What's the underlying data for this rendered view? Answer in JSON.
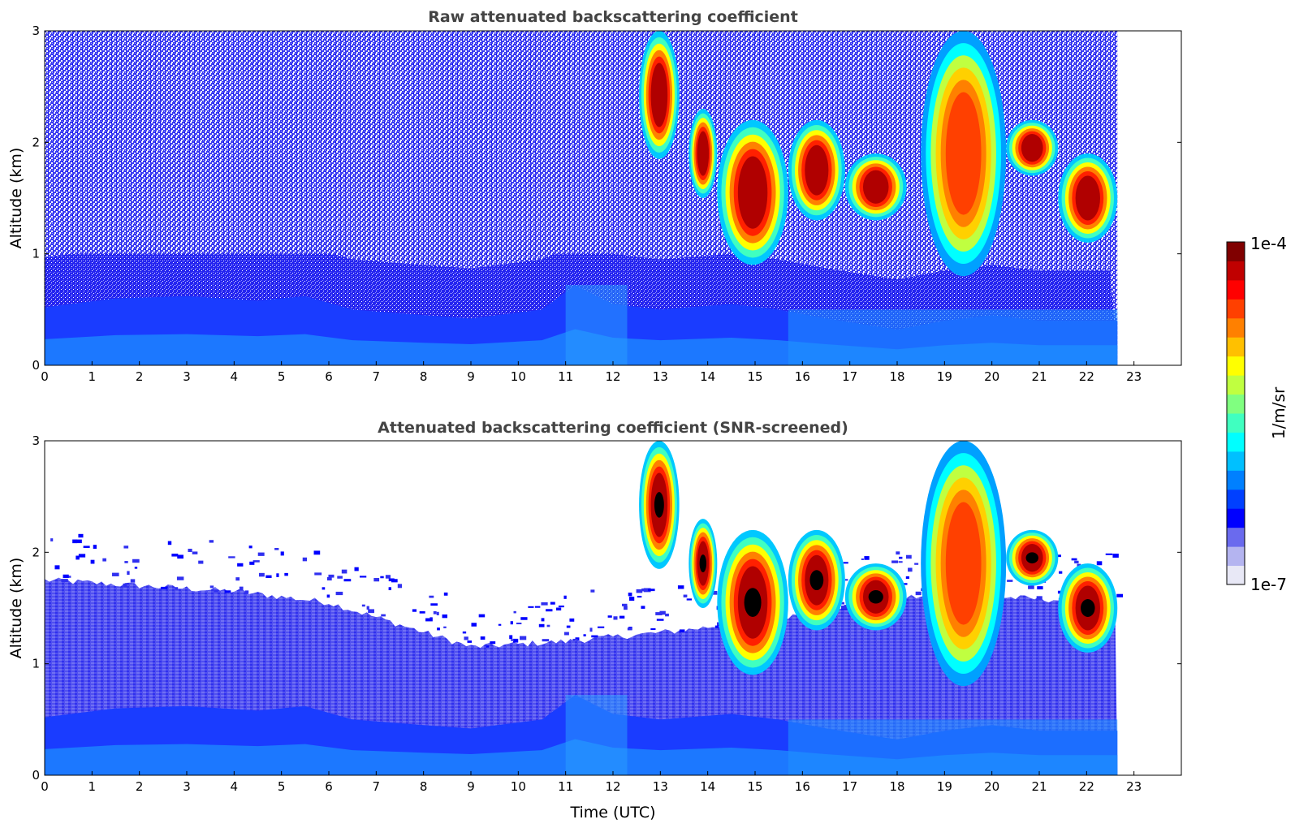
{
  "chart_data": [
    {
      "type": "heatmap",
      "title": "Raw attenuated backscattering coefficient",
      "xlabel": "",
      "ylabel": "Altitude (km)",
      "xlim": [
        0,
        24
      ],
      "ylim": [
        0,
        3
      ],
      "x_ticks": [
        "0",
        "1",
        "2",
        "3",
        "4",
        "5",
        "6",
        "7",
        "8",
        "9",
        "10",
        "11",
        "12",
        "13",
        "14",
        "15",
        "16",
        "17",
        "18",
        "19",
        "20",
        "21",
        "22",
        "23"
      ],
      "y_ticks": [
        "0",
        "1",
        "2",
        "3"
      ],
      "data_end_time": 22.65,
      "boundary_layer_top_km": [
        [
          0,
          0.52
        ],
        [
          1.5,
          0.6
        ],
        [
          3,
          0.62
        ],
        [
          4.5,
          0.58
        ],
        [
          5.5,
          0.62
        ],
        [
          6.5,
          0.5
        ],
        [
          8,
          0.45
        ],
        [
          9,
          0.42
        ],
        [
          10.5,
          0.5
        ],
        [
          11.2,
          0.72
        ],
        [
          12,
          0.55
        ],
        [
          13,
          0.5
        ],
        [
          14.5,
          0.55
        ],
        [
          15.5,
          0.5
        ],
        [
          16.5,
          0.42
        ],
        [
          18,
          0.32
        ],
        [
          19,
          0.4
        ],
        [
          20,
          0.45
        ],
        [
          21,
          0.4
        ],
        [
          22.65,
          0.4
        ]
      ],
      "noise_region": "scattered blue/white noise above boundary layer",
      "cloud_layers": [
        {
          "t_start": 12.55,
          "t_end": 13.4,
          "alt_top": 3.0,
          "alt_base": 1.85,
          "intensity": "high"
        },
        {
          "t_start": 13.6,
          "t_end": 14.2,
          "alt_top": 2.3,
          "alt_base": 1.5,
          "intensity": "high"
        },
        {
          "t_start": 14.2,
          "t_end": 15.7,
          "alt_top": 2.2,
          "alt_base": 0.9,
          "intensity": "high"
        },
        {
          "t_start": 15.7,
          "t_end": 16.9,
          "alt_top": 2.2,
          "alt_base": 1.3,
          "intensity": "high"
        },
        {
          "t_start": 16.9,
          "t_end": 18.2,
          "alt_top": 1.9,
          "alt_base": 1.3,
          "intensity": "high"
        },
        {
          "t_start": 18.5,
          "t_end": 20.3,
          "alt_top": 3.0,
          "alt_base": 0.8,
          "intensity": "precipitating"
        },
        {
          "t_start": 20.3,
          "t_end": 21.4,
          "alt_top": 2.2,
          "alt_base": 1.7,
          "intensity": "high"
        },
        {
          "t_start": 21.4,
          "t_end": 22.65,
          "alt_top": 1.9,
          "alt_base": 1.1,
          "intensity": "high"
        }
      ]
    },
    {
      "type": "heatmap",
      "title": "Attenuated backscattering coefficient (SNR-screened)",
      "xlabel": "Time (UTC)",
      "ylabel": "Altitude (km)",
      "xlim": [
        0,
        24
      ],
      "ylim": [
        0,
        3
      ],
      "x_ticks": [
        "0",
        "1",
        "2",
        "3",
        "4",
        "5",
        "6",
        "7",
        "8",
        "9",
        "10",
        "11",
        "12",
        "13",
        "14",
        "15",
        "16",
        "17",
        "18",
        "19",
        "20",
        "21",
        "22",
        "23"
      ],
      "y_ticks": [
        "0",
        "1",
        "2",
        "3"
      ],
      "data_end_time": 22.65,
      "screened_top_km": [
        [
          0,
          1.75
        ],
        [
          2,
          1.7
        ],
        [
          4,
          1.65
        ],
        [
          6,
          1.55
        ],
        [
          7.5,
          1.35
        ],
        [
          9,
          1.15
        ],
        [
          11,
          1.2
        ],
        [
          13.5,
          1.3
        ],
        [
          16,
          1.45
        ],
        [
          18,
          1.6
        ],
        [
          20,
          1.6
        ],
        [
          22.65,
          1.55
        ]
      ]
    }
  ],
  "colorbar": {
    "label": "1/m/sr",
    "max_label": "1e-4",
    "min_label": "1e-7",
    "colormap": "jet",
    "colors": [
      "#e8e8f6",
      "#b4b4f0",
      "#6a6aee",
      "#0000ff",
      "#0040ff",
      "#0080ff",
      "#00c0ff",
      "#00ffff",
      "#40ffc0",
      "#80ff80",
      "#c0ff40",
      "#ffff00",
      "#ffc000",
      "#ff8000",
      "#ff4000",
      "#ff0000",
      "#c00000",
      "#800000"
    ]
  }
}
